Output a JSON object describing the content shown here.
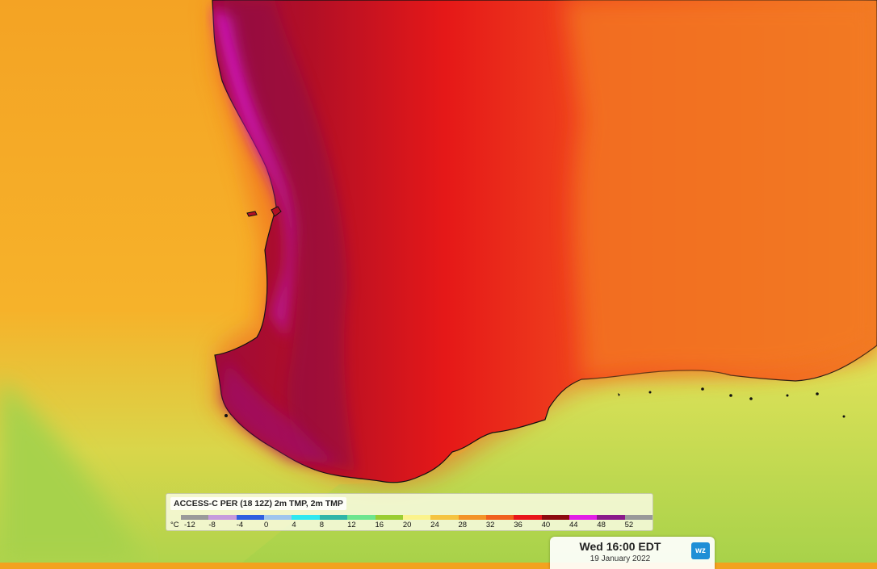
{
  "legend": {
    "title": "ACCESS-C PER (18 12Z) 2m TMP, 2m TMP",
    "unit": "°C",
    "ticks": [
      "-12",
      "-8",
      "-4",
      "0",
      "4",
      "8",
      "12",
      "16",
      "20",
      "24",
      "28",
      "32",
      "36",
      "40",
      "44",
      "48",
      "52"
    ],
    "colors": [
      "#9a9a9a",
      "#c69bdd",
      "#2f5fe0",
      "#9fc5ee",
      "#30e8f0",
      "#2fb6a8",
      "#6de58f",
      "#9acd32",
      "#fbf38c",
      "#f5c441",
      "#f39327",
      "#f0601d",
      "#e8161a",
      "#8c0a0e",
      "#e21ee6",
      "#8a1a8a",
      "#999999"
    ]
  },
  "timestamp": {
    "time": "Wed 16:00 EDT",
    "date": "19 January 2022"
  },
  "logo": {
    "text": "wz"
  }
}
